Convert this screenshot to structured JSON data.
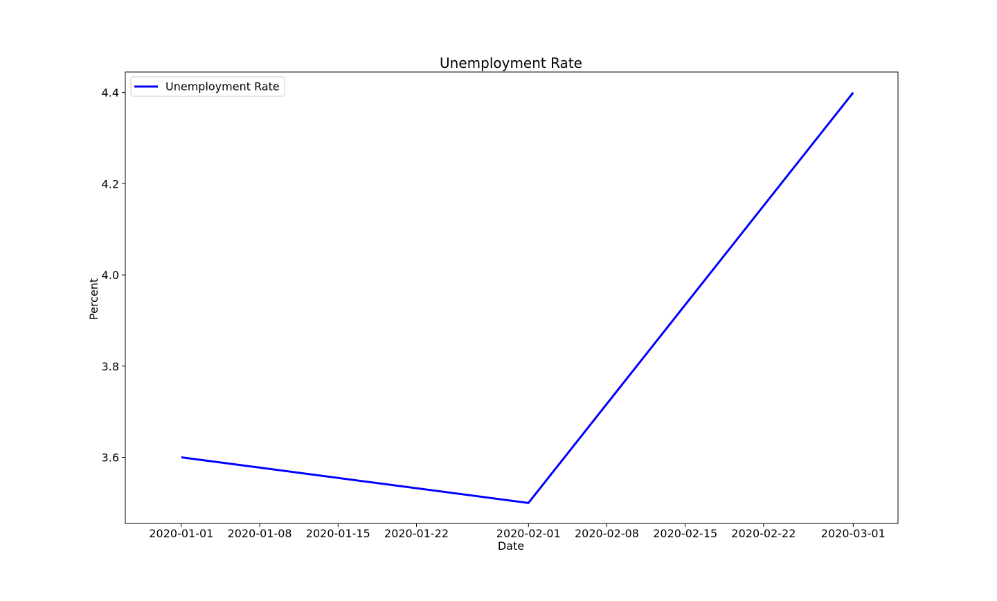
{
  "chart_data": {
    "type": "line",
    "title": "Unemployment Rate",
    "xlabel": "Date",
    "ylabel": "Percent",
    "x": [
      "2020-01-01",
      "2020-02-01",
      "2020-03-01"
    ],
    "series": [
      {
        "name": "Unemployment Rate",
        "values": [
          3.6,
          3.5,
          4.4
        ],
        "color": "#0000ff"
      }
    ],
    "x_ticks": [
      "2020-01-01",
      "2020-01-08",
      "2020-01-15",
      "2020-01-22",
      "2020-02-01",
      "2020-02-08",
      "2020-02-15",
      "2020-02-22",
      "2020-03-01"
    ],
    "y_ticks": [
      3.6,
      3.8,
      4.0,
      4.2,
      4.4
    ],
    "xlim": [
      "2019-12-27",
      "2020-03-05"
    ],
    "ylim": [
      3.455,
      4.445
    ],
    "grid": false,
    "legend_position": "upper left"
  }
}
